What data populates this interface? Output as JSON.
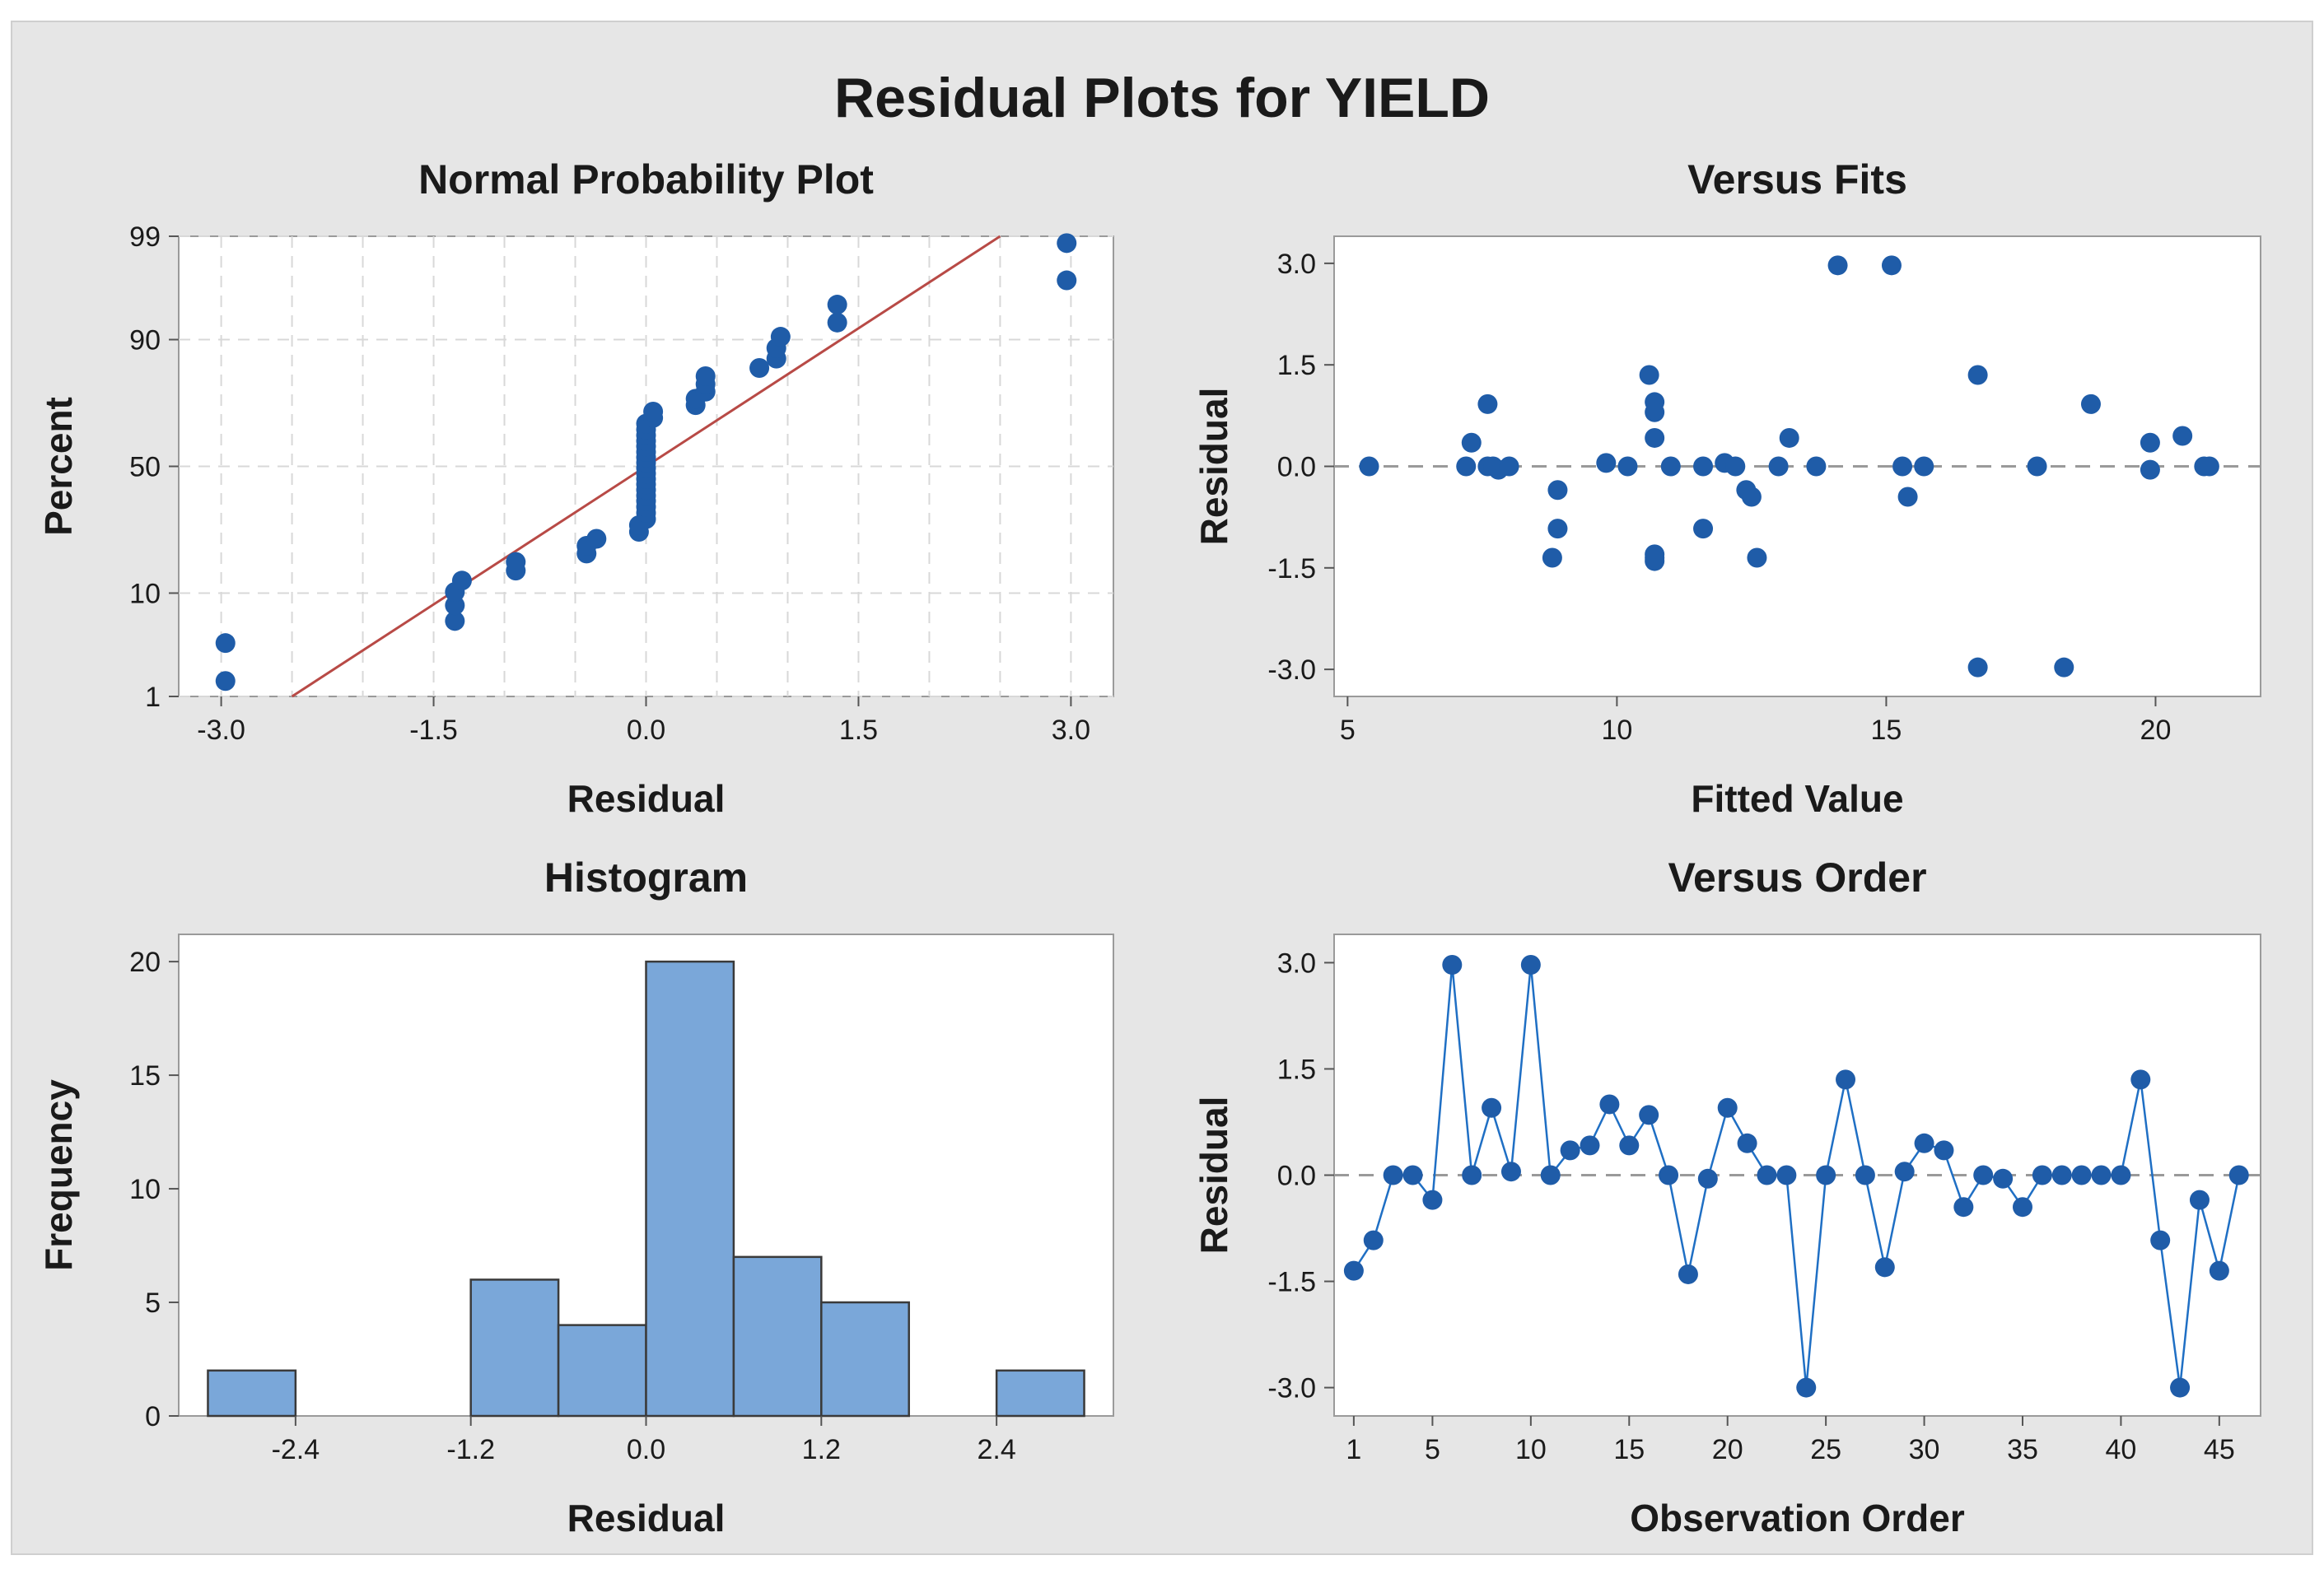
{
  "main_title": "Residual Plots for YIELD",
  "colors": {
    "outer_bg": "#e6e6e6",
    "plot_bg": "#ffffff",
    "point": "#1f5ca8",
    "line": "#1f6fc4",
    "bar_fill": "#7aa7d9",
    "bar_stroke": "#3a3a3a",
    "fit_line": "#b84a46",
    "grid": "#d8d8d8",
    "ref_line": "#9a9a9a",
    "text": "#1a1a1a"
  },
  "chart_data": [
    {
      "id": "npp",
      "type": "scatter",
      "title": "Normal Probability Plot",
      "xlabel": "Residual",
      "ylabel": "Percent",
      "xlim": [
        -3.3,
        3.3
      ],
      "x_ticks": [
        -3.0,
        -1.5,
        0.0,
        1.5,
        3.0
      ],
      "x_tick_labels": [
        "-3.0",
        "-1.5",
        "0.0",
        "1.5",
        "3.0"
      ],
      "y_scale": "normal-probability",
      "ylim_percent": [
        1,
        99
      ],
      "y_ticks": [
        1,
        10,
        50,
        90,
        99
      ],
      "y_tick_labels": [
        "1",
        "10",
        "50",
        "90",
        "99"
      ],
      "grid": true,
      "fit_line": {
        "from": [
          -2.5,
          1
        ],
        "to": [
          2.5,
          99
        ]
      },
      "x": [
        -2.97,
        -2.97,
        -1.35,
        -1.35,
        -1.35,
        -1.3,
        -0.92,
        -0.92,
        -0.42,
        -0.42,
        -0.35,
        -0.05,
        -0.05,
        0.0,
        0.0,
        0.0,
        0.0,
        0.0,
        0.0,
        0.0,
        0.0,
        0.0,
        0.0,
        0.0,
        0.0,
        0.0,
        0.0,
        0.0,
        0.0,
        0.0,
        0.0,
        0.05,
        0.05,
        0.35,
        0.35,
        0.42,
        0.42,
        0.42,
        0.8,
        0.92,
        0.92,
        0.95,
        1.35,
        1.35,
        2.97,
        2.97
      ],
      "y_percent": [
        1.5,
        3.7,
        5.9,
        8.0,
        10.2,
        12.4,
        14.6,
        16.7,
        18.9,
        21.1,
        23.2,
        25.4,
        27.6,
        29.7,
        31.9,
        34.1,
        36.3,
        38.4,
        40.6,
        42.8,
        44.9,
        47.1,
        49.3,
        51.5,
        53.6,
        55.8,
        58.0,
        60.1,
        62.3,
        64.5,
        66.7,
        68.8,
        71.0,
        73.2,
        75.3,
        77.5,
        79.7,
        81.9,
        84.0,
        86.2,
        88.4,
        90.5,
        92.7,
        94.9,
        97.0,
        98.8
      ]
    },
    {
      "id": "fits",
      "type": "scatter",
      "title": "Versus Fits",
      "xlabel": "Fitted Value",
      "ylabel": "Residual",
      "xlim": [
        4.75,
        21.95
      ],
      "ylim": [
        -3.4,
        3.4
      ],
      "x_ticks": [
        5,
        10,
        15,
        20
      ],
      "x_tick_labels": [
        "5",
        "10",
        "15",
        "20"
      ],
      "y_ticks": [
        -3.0,
        -1.5,
        0.0,
        1.5,
        3.0
      ],
      "y_tick_labels": [
        "-3.0",
        "-1.5",
        "0.0",
        "1.5",
        "3.0"
      ],
      "reference_line": 0.0,
      "x": [
        5.4,
        7.2,
        7.3,
        7.6,
        7.6,
        7.7,
        7.8,
        8.0,
        8.8,
        8.9,
        8.9,
        9.8,
        10.2,
        10.6,
        10.7,
        10.7,
        10.7,
        10.7,
        10.7,
        10.7,
        11.0,
        11.6,
        11.6,
        12.0,
        12.2,
        12.4,
        12.5,
        12.6,
        13.0,
        13.2,
        13.7,
        14.1,
        15.1,
        15.3,
        15.4,
        15.7,
        16.7,
        16.7,
        17.8,
        18.3,
        18.8,
        19.9,
        19.9,
        20.5,
        20.9,
        21.0
      ],
      "y": [
        0.0,
        0.0,
        0.35,
        0.0,
        0.92,
        0.0,
        -0.05,
        0.0,
        -1.35,
        -0.92,
        -0.35,
        0.05,
        0.0,
        1.35,
        0.95,
        0.8,
        0.42,
        -1.3,
        -1.4,
        -1.35,
        0.0,
        0.0,
        -0.92,
        0.05,
        0.0,
        -0.35,
        -0.45,
        -1.35,
        0.0,
        0.42,
        0.0,
        2.97,
        2.97,
        0.0,
        -0.45,
        0.0,
        1.35,
        -2.97,
        0.0,
        -2.97,
        0.92,
        0.35,
        -0.05,
        0.45,
        0.0,
        0.0
      ]
    },
    {
      "id": "hist",
      "type": "bar",
      "title": "Histogram",
      "xlabel": "Residual",
      "ylabel": "Frequency",
      "xlim": [
        -3.2,
        3.2
      ],
      "ylim": [
        0,
        21.2
      ],
      "x_ticks": [
        -2.4,
        -1.2,
        0.0,
        1.2,
        2.4
      ],
      "x_tick_labels": [
        "-2.4",
        "-1.2",
        "0.0",
        "1.2",
        "2.4"
      ],
      "y_ticks": [
        0,
        5,
        10,
        15,
        20
      ],
      "y_tick_labels": [
        "0",
        "5",
        "10",
        "15",
        "20"
      ],
      "bin_centers": [
        -2.7,
        -2.1,
        -1.5,
        -0.9,
        -0.3,
        0.3,
        0.9,
        1.5,
        2.1,
        2.7
      ],
      "bin_width": 0.6,
      "values": [
        2,
        0,
        0,
        6,
        4,
        20,
        7,
        5,
        0,
        2
      ]
    },
    {
      "id": "order",
      "type": "line",
      "title": "Versus Order",
      "xlabel": "Observation Order",
      "ylabel": "Residual",
      "xlim": [
        0,
        47.1
      ],
      "ylim": [
        -3.4,
        3.4
      ],
      "x_ticks": [
        1,
        5,
        10,
        15,
        20,
        25,
        30,
        35,
        40,
        45
      ],
      "x_tick_labels": [
        "1",
        "5",
        "10",
        "15",
        "20",
        "25",
        "30",
        "35",
        "40",
        "45"
      ],
      "y_ticks": [
        -3.0,
        -1.5,
        0.0,
        1.5,
        3.0
      ],
      "y_tick_labels": [
        "-3.0",
        "-1.5",
        "0.0",
        "1.5",
        "3.0"
      ],
      "reference_line": 0.0,
      "x": [
        1,
        2,
        3,
        4,
        5,
        6,
        7,
        8,
        9,
        10,
        11,
        12,
        13,
        14,
        15,
        16,
        17,
        18,
        19,
        20,
        21,
        22,
        23,
        24,
        25,
        26,
        27,
        28,
        29,
        30,
        31,
        32,
        33,
        34,
        35,
        36,
        37,
        38,
        39,
        40,
        41,
        42,
        43,
        44,
        45,
        46
      ],
      "y": [
        -1.35,
        -0.92,
        0.0,
        0.0,
        -0.35,
        2.97,
        0.0,
        0.95,
        0.05,
        2.97,
        0.0,
        0.35,
        0.42,
        1.0,
        0.42,
        0.85,
        0.0,
        -1.4,
        -0.05,
        0.95,
        0.45,
        0.0,
        0.0,
        -3.0,
        0.0,
        1.35,
        0.0,
        -1.3,
        0.05,
        0.45,
        0.35,
        -0.45,
        0.0,
        -0.05,
        -0.45,
        0.0,
        0.0,
        0.0,
        0.0,
        0.0,
        1.35,
        -0.92,
        -3.0,
        -0.35,
        -1.35,
        0.0
      ]
    }
  ]
}
